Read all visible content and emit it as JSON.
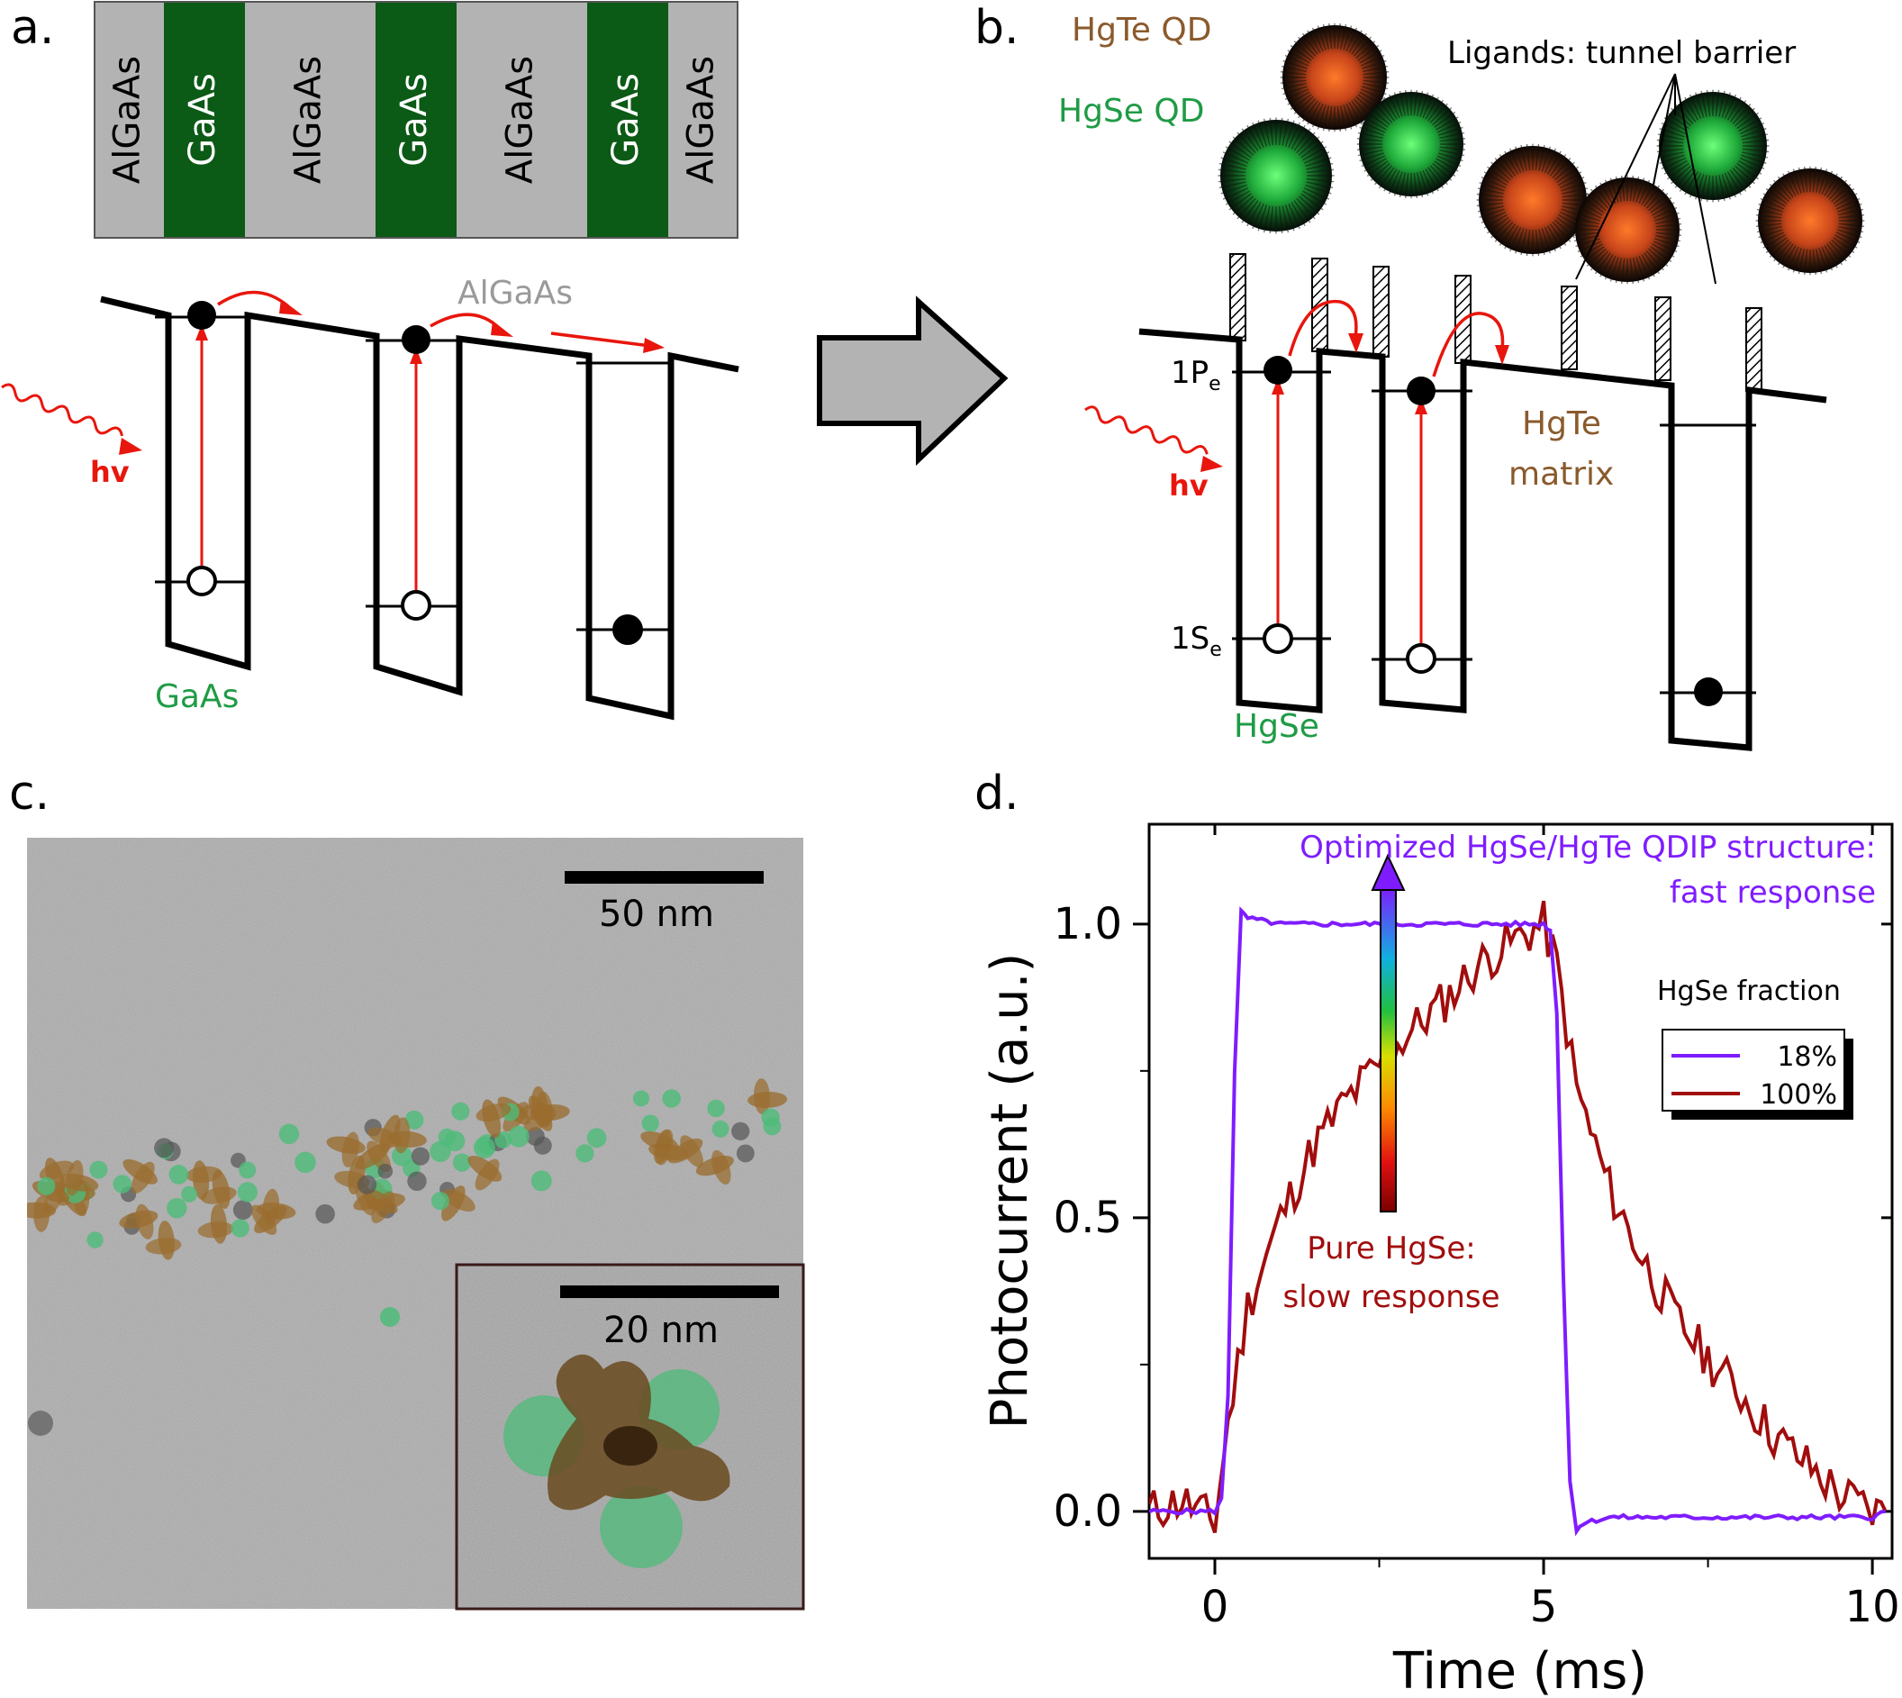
{
  "colors": {
    "algaas_gray": "#b3b3b3",
    "gaas_green": "#0b5a16",
    "red": "#e8160c",
    "hgse_green": "#1f9b45",
    "hgte_brown": "#8a5a2c",
    "purple": "#7f1cff",
    "darkred": "#a10d0d",
    "tem_brown": "#9a6d2f",
    "tem_green": "#4dbb79"
  },
  "panel_a": {
    "label": "a.",
    "layers": [
      "AlGaAs",
      "GaAs",
      "AlGaAs",
      "GaAs",
      "AlGaAs",
      "GaAs",
      "AlGaAs"
    ],
    "barrier_label": "AlGaAs",
    "well_label": "GaAs",
    "photon_label": "hv"
  },
  "arrow_icon": "right-arrow-icon",
  "panel_b": {
    "label": "b.",
    "hgte_qd": "HgTe QD",
    "hgse_qd": "HgSe QD",
    "ligands": "Ligands: tunnel barrier",
    "ip_main": "1P",
    "ip_sub": "e",
    "is_main": "1S",
    "is_sub": "e",
    "photon_label": "hv",
    "matrix_line1": "HgTe",
    "matrix_line2": "matrix",
    "well_label": "HgSe"
  },
  "panel_c": {
    "label": "c.",
    "scale_main": "50 nm",
    "scale_inset": "20 nm"
  },
  "panel_d": {
    "label": "d.",
    "annotation_top_line1": "Optimized HgSe/HgTe QDIP structure:",
    "annotation_top_line2": "fast response",
    "annotation_bottom_line1": "Pure HgSe:",
    "annotation_bottom_line2": "slow response",
    "legend_title": "HgSe fraction"
  },
  "chart_data": {
    "type": "line",
    "xlabel": "Time (ms)",
    "ylabel": "Photocurrent (a.u.)",
    "xlim": [
      -1,
      10.3
    ],
    "ylim": [
      -0.08,
      1.17
    ],
    "xticks": [
      0,
      5,
      10
    ],
    "yticks": [
      0.0,
      0.5,
      1.0
    ],
    "xtick_labels": [
      "0",
      "5",
      "10"
    ],
    "ytick_labels": [
      "0.0",
      "0.5",
      "1.0"
    ],
    "legend_title": "HgSe fraction",
    "legend_position": "right",
    "series": [
      {
        "name": "18%",
        "color": "#7f1cff",
        "x": [
          -1,
          0,
          0.1,
          0.2,
          0.3,
          0.4,
          0.5,
          1,
          2,
          3,
          4,
          5,
          5.1,
          5.2,
          5.3,
          5.4,
          5.5,
          5.6,
          6,
          7,
          8,
          9,
          10,
          10.2
        ],
        "y": [
          0,
          0,
          0.02,
          0.2,
          0.75,
          1.02,
          1.01,
          1.0,
          1.0,
          1.0,
          1.0,
          1.0,
          0.99,
          0.85,
          0.4,
          0.05,
          -0.03,
          -0.02,
          -0.01,
          -0.01,
          -0.01,
          -0.01,
          -0.01,
          0.0
        ]
      },
      {
        "name": "100%",
        "color": "#a10d0d",
        "x": [
          -1,
          -0.5,
          0,
          0.2,
          0.5,
          1,
          1.5,
          2,
          2.5,
          3,
          3.5,
          4,
          4.5,
          5,
          5.2,
          5.5,
          6,
          6.5,
          7,
          7.5,
          8,
          8.5,
          9,
          9.5,
          10,
          10.2
        ],
        "y": [
          0.0,
          0.02,
          -0.02,
          0.15,
          0.35,
          0.5,
          0.62,
          0.7,
          0.76,
          0.82,
          0.87,
          0.93,
          0.97,
          1.0,
          0.93,
          0.72,
          0.55,
          0.43,
          0.33,
          0.26,
          0.2,
          0.13,
          0.08,
          0.03,
          0.0,
          0.0
        ]
      }
    ]
  }
}
